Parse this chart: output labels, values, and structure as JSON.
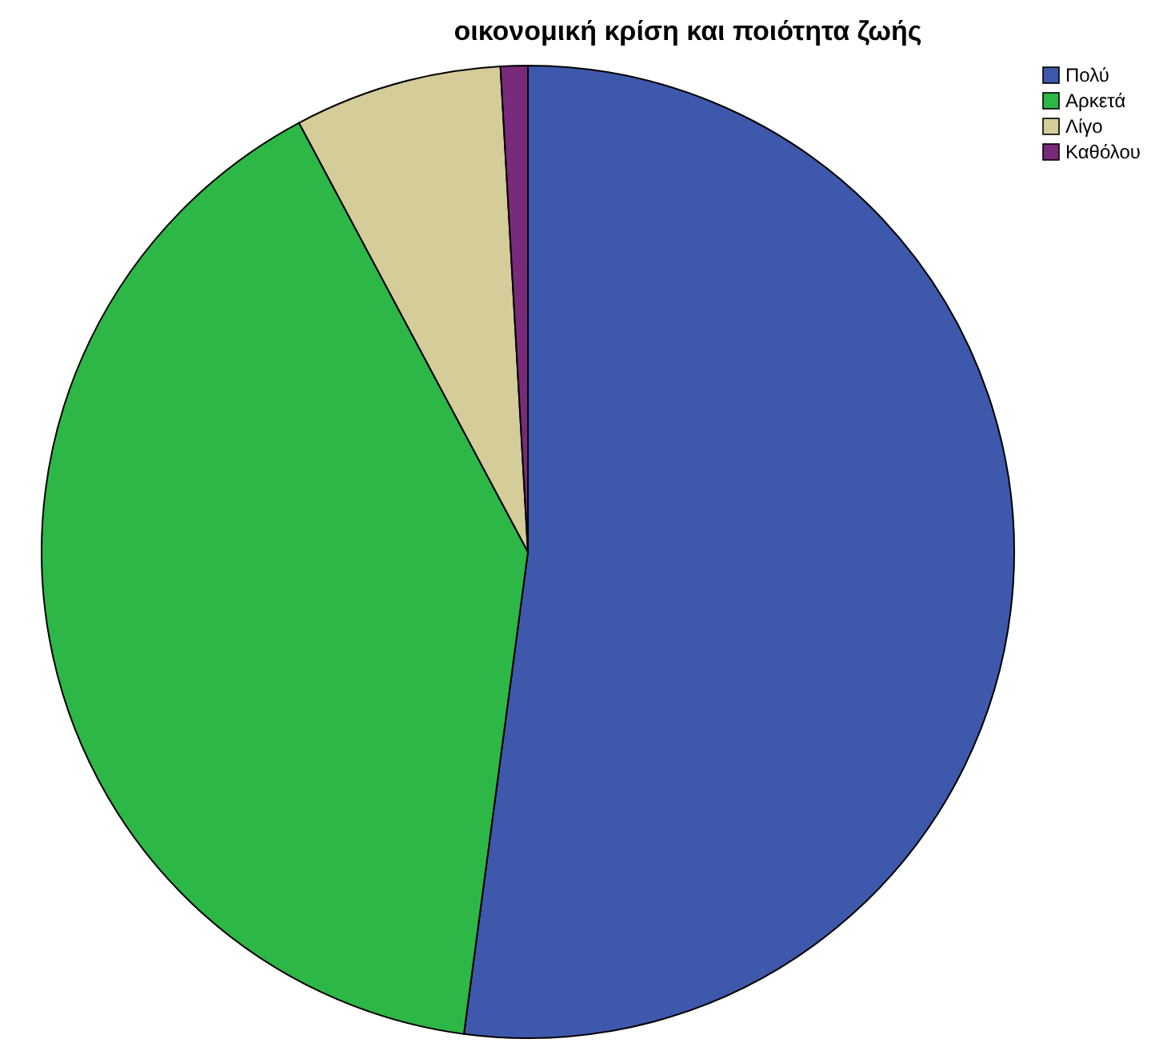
{
  "chart_data": {
    "type": "pie",
    "title": "οικονομική κρίση και ποιότητα ζωής",
    "categories": [
      "Πολύ",
      "Αρκετά",
      "Λίγο",
      "Καθόλου"
    ],
    "values": [
      52.1,
      40.1,
      6.9,
      0.9
    ],
    "colors": [
      "#3e58ac",
      "#2db746",
      "#d4cc99",
      "#7a2a7a"
    ],
    "legend": "top right"
  }
}
